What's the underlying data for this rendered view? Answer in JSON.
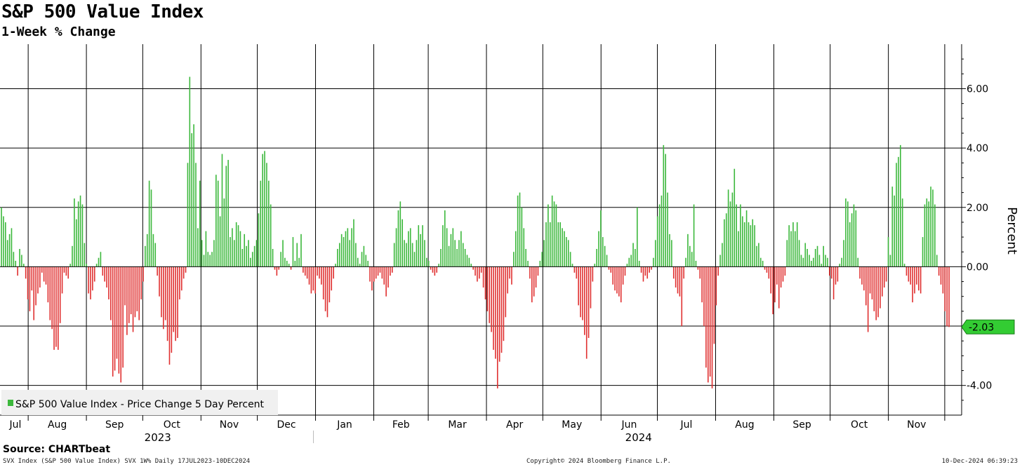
{
  "header": {
    "title": "S&P 500 Value Index",
    "subtitle": "1-Week % Change"
  },
  "footer": {
    "source": "Source: CHARTbeat",
    "ticker": "SVX Index (S&P 500 Value Index) SVX 1W% Daily 17JUL2023-10DEC2024",
    "copyright": "Copyright© 2024 Bloomberg Finance L.P.",
    "timestamp": "10-Dec-2024 06:39:23"
  },
  "chart_data": {
    "type": "bar",
    "title": "S&P 500 Value Index",
    "subtitle": "1-Week % Change",
    "ylabel": "Percent",
    "ylim": [
      -5,
      7.5
    ],
    "yticks": [
      6,
      4,
      2,
      0,
      -4
    ],
    "ytick_labels": [
      "6.00",
      "4.00",
      "2.00",
      "0.00",
      "-4.00"
    ],
    "grid": true,
    "legend": {
      "position": "bottom-left",
      "entries": [
        "S&P 500 Value Index - Price Change 5 Day Percent"
      ]
    },
    "last_value_label": "-2.03",
    "last_value": -2.03,
    "colors": {
      "positive": "#3cb83c",
      "negative": "#e03030",
      "last_value_badge": "#33cc33"
    },
    "x_start": "2023-07-17",
    "x_end": "2024-12-10",
    "months": [
      "Jul",
      "Aug",
      "Sep",
      "Oct",
      "Nov",
      "Dec",
      "Jan",
      "Feb",
      "Mar",
      "Apr",
      "May",
      "Jun",
      "Jul",
      "Aug",
      "Sep",
      "Oct",
      "Nov"
    ],
    "years": [
      "2023",
      "2024"
    ],
    "series": [
      {
        "name": "S&P 500 Value Index - Price Change 5 Day Percent",
        "values": [
          2.0,
          1.7,
          1.5,
          0.9,
          1.1,
          1.3,
          0.5,
          0.2,
          -0.3,
          0.6,
          0.4,
          0.1,
          -0.4,
          -1.1,
          -1.5,
          -0.8,
          -1.8,
          -1.3,
          -0.9,
          -0.7,
          -0.2,
          -0.5,
          -0.6,
          -1.2,
          -1.8,
          -2.1,
          -2.8,
          -2.7,
          -2.8,
          -1.9,
          -0.9,
          -0.2,
          -0.3,
          -0.4,
          0.1,
          0.7,
          2.3,
          1.6,
          2.2,
          2.4,
          2.1,
          0.8,
          0.1,
          -0.9,
          -1.1,
          -0.8,
          -0.5,
          0.1,
          0.3,
          0.5,
          -0.3,
          -0.5,
          -0.7,
          -1.1,
          -1.8,
          -3.7,
          -3.5,
          -3.1,
          -3.6,
          -3.9,
          -3.4,
          -1.3,
          -2.3,
          -1.9,
          -1.6,
          -2.2,
          -1.7,
          -1.5,
          -1.8,
          -1.1,
          -0.5,
          0.7,
          1.1,
          2.9,
          2.6,
          1.1,
          0.8,
          -0.3,
          -1.0,
          -1.7,
          -2.1,
          -1.8,
          -2.5,
          -3.3,
          -2.9,
          -2.2,
          -2.5,
          -2.4,
          -1.1,
          -0.8,
          -0.4,
          -0.2,
          3.5,
          6.4,
          4.5,
          4.8,
          3.5,
          1.3,
          2.9,
          0.9,
          0.4,
          1.2,
          0.5,
          0.4,
          0.5,
          0.9,
          3.1,
          2.9,
          1.7,
          3.8,
          2.3,
          3.4,
          3.6,
          1.0,
          1.3,
          0.9,
          1.5,
          1.4,
          1.2,
          0.6,
          1.1,
          0.7,
          0.9,
          0.3,
          0.5,
          0.7,
          0.9,
          1.8,
          2.9,
          3.8,
          3.9,
          3.5,
          2.9,
          2.1,
          0.6,
          -0.1,
          -0.3,
          -0.1,
          0.5,
          0.9,
          0.3,
          0.2,
          0.1,
          -0.1,
          1.0,
          0.2,
          0.8,
          0.3,
          1.1,
          -0.2,
          -0.3,
          -0.4,
          -0.6,
          -0.9,
          -0.8,
          -0.9,
          -0.3,
          -0.4,
          -0.6,
          -1.1,
          -1.5,
          -1.7,
          -1.2,
          -0.8,
          -0.4,
          0.1,
          0.6,
          0.8,
          1.1,
          1.0,
          1.2,
          1.3,
          0.9,
          1.3,
          1.6,
          0.8,
          0.3,
          0.1,
          0.5,
          0.7,
          0.4,
          0.2,
          -0.5,
          -0.8,
          -0.5,
          -0.4,
          -0.3,
          -0.2,
          -0.4,
          -0.6,
          -1.0,
          -0.7,
          -0.3,
          -0.2,
          0.8,
          1.3,
          1.9,
          2.2,
          1.6,
          0.9,
          0.8,
          1.2,
          1.3,
          0.8,
          0.5,
          0.9,
          1.4,
          1.1,
          1.4,
          0.9,
          0.3,
          0.2,
          -0.1,
          -0.2,
          -0.3,
          -0.2,
          0.1,
          0.6,
          1.4,
          1.9,
          1.3,
          0.7,
          1.1,
          1.3,
          0.9,
          0.6,
          0.9,
          1.2,
          0.8,
          0.6,
          0.4,
          0.3,
          0.1,
          -0.1,
          -0.3,
          -0.5,
          -0.4,
          -0.2,
          -0.7,
          -1.1,
          -1.5,
          -1.9,
          -2.2,
          -2.8,
          -3.1,
          -4.1,
          -3.2,
          -2.9,
          -2.5,
          -1.7,
          -0.9,
          -0.4,
          -0.6,
          0.5,
          1.2,
          2.4,
          2.5,
          2.0,
          1.3,
          0.6,
          0.2,
          -0.4,
          -1.2,
          -1.0,
          -0.7,
          -0.3,
          0.2,
          0.5,
          0.9,
          1.5,
          2.1,
          1.5,
          2.4,
          2.2,
          2.1,
          1.5,
          1.5,
          1.3,
          1.2,
          1.0,
          0.9,
          0.5,
          0.1,
          -0.2,
          -0.4,
          -1.3,
          -1.7,
          -1.8,
          -2.3,
          -3.1,
          -2.4,
          -1.4,
          -0.5,
          0.1,
          0.6,
          1.2,
          1.9,
          1.0,
          0.7,
          0.4,
          -0.1,
          -0.2,
          -0.6,
          -0.8,
          -0.9,
          -1.0,
          -1.2,
          -0.6,
          -0.3,
          0.1,
          0.3,
          0.4,
          0.8,
          0.6,
          2.0,
          0.2,
          -0.2,
          -0.5,
          -0.3,
          -0.4,
          -0.2,
          -0.1,
          0.3,
          0.9,
          1.7,
          2.1,
          2.4,
          4.1,
          3.8,
          2.5,
          1.1,
          0.9,
          -0.4,
          -0.7,
          -0.9,
          -1.0,
          -2.0,
          -0.4,
          0.3,
          1.1,
          0.7,
          0.5,
          2.1,
          0.2,
          -0.1,
          -0.4,
          -1.2,
          -2.0,
          -3.4,
          -3.9,
          -3.7,
          -4.1,
          -2.6,
          -1.3,
          -0.3,
          0.4,
          0.8,
          1.6,
          1.8,
          2.6,
          2.2,
          2.5,
          3.3,
          2.1,
          1.2,
          2.1,
          1.7,
          1.5,
          1.9,
          1.5,
          1.4,
          1.6,
          1.4,
          0.7,
          0.8,
          0.3,
          0.2,
          -0.1,
          -0.2,
          -0.4,
          -0.9,
          -1.6,
          -1.2,
          -0.6,
          -1.4,
          -0.7,
          -0.5,
          -0.3,
          0.9,
          1.4,
          1.2,
          1.5,
          1.2,
          1.5,
          0.9,
          0.4,
          0.3,
          0.8,
          0.6,
          0.4,
          0.2,
          0.3,
          0.6,
          0.7,
          0.4,
          0.1,
          0.7,
          0.4,
          0.3,
          -0.3,
          -0.4,
          -1.1,
          -0.6,
          -0.5,
          0.1,
          0.3,
          0.9,
          2.3,
          2.2,
          1.5,
          1.8,
          2.1,
          1.9,
          0.3,
          -0.4,
          -0.6,
          -0.8,
          -1.3,
          -2.2,
          -0.9,
          -1.1,
          -1.5,
          -1.8,
          -1.7,
          -1.4,
          -1.0,
          -0.7,
          -0.5,
          1.0,
          0.4,
          2.7,
          2.4,
          3.5,
          3.7,
          4.1,
          2.3,
          0.1,
          -0.3,
          -0.5,
          -0.6,
          -1.2,
          -0.9,
          -0.6,
          -0.8,
          -0.9,
          1.0,
          2.1,
          2.3,
          2.2,
          2.7,
          2.6,
          2.1,
          0.4,
          -0.3,
          -0.6,
          -0.9,
          -1.5,
          -2.0,
          -2.03
        ]
      }
    ]
  }
}
